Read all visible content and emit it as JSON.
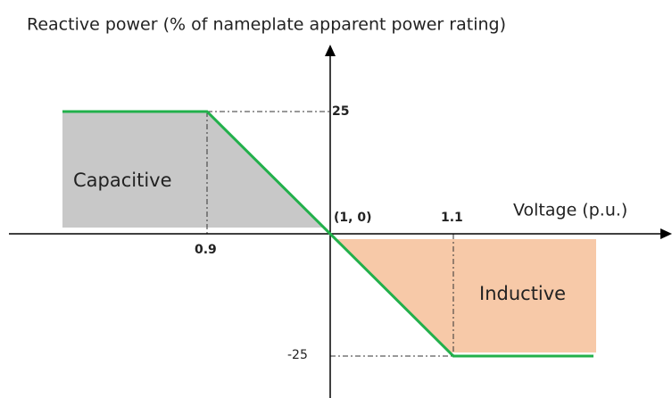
{
  "title": "Reactive power (% of nameplate apparent power rating)",
  "x_axis_label": "Voltage (p.u.)",
  "origin_label": "(1, 0)",
  "x_ticks": [
    "0.9",
    "1.1"
  ],
  "y_ticks": [
    "25",
    "-25"
  ],
  "regions": [
    "Capacitive",
    "Inductive"
  ]
}
